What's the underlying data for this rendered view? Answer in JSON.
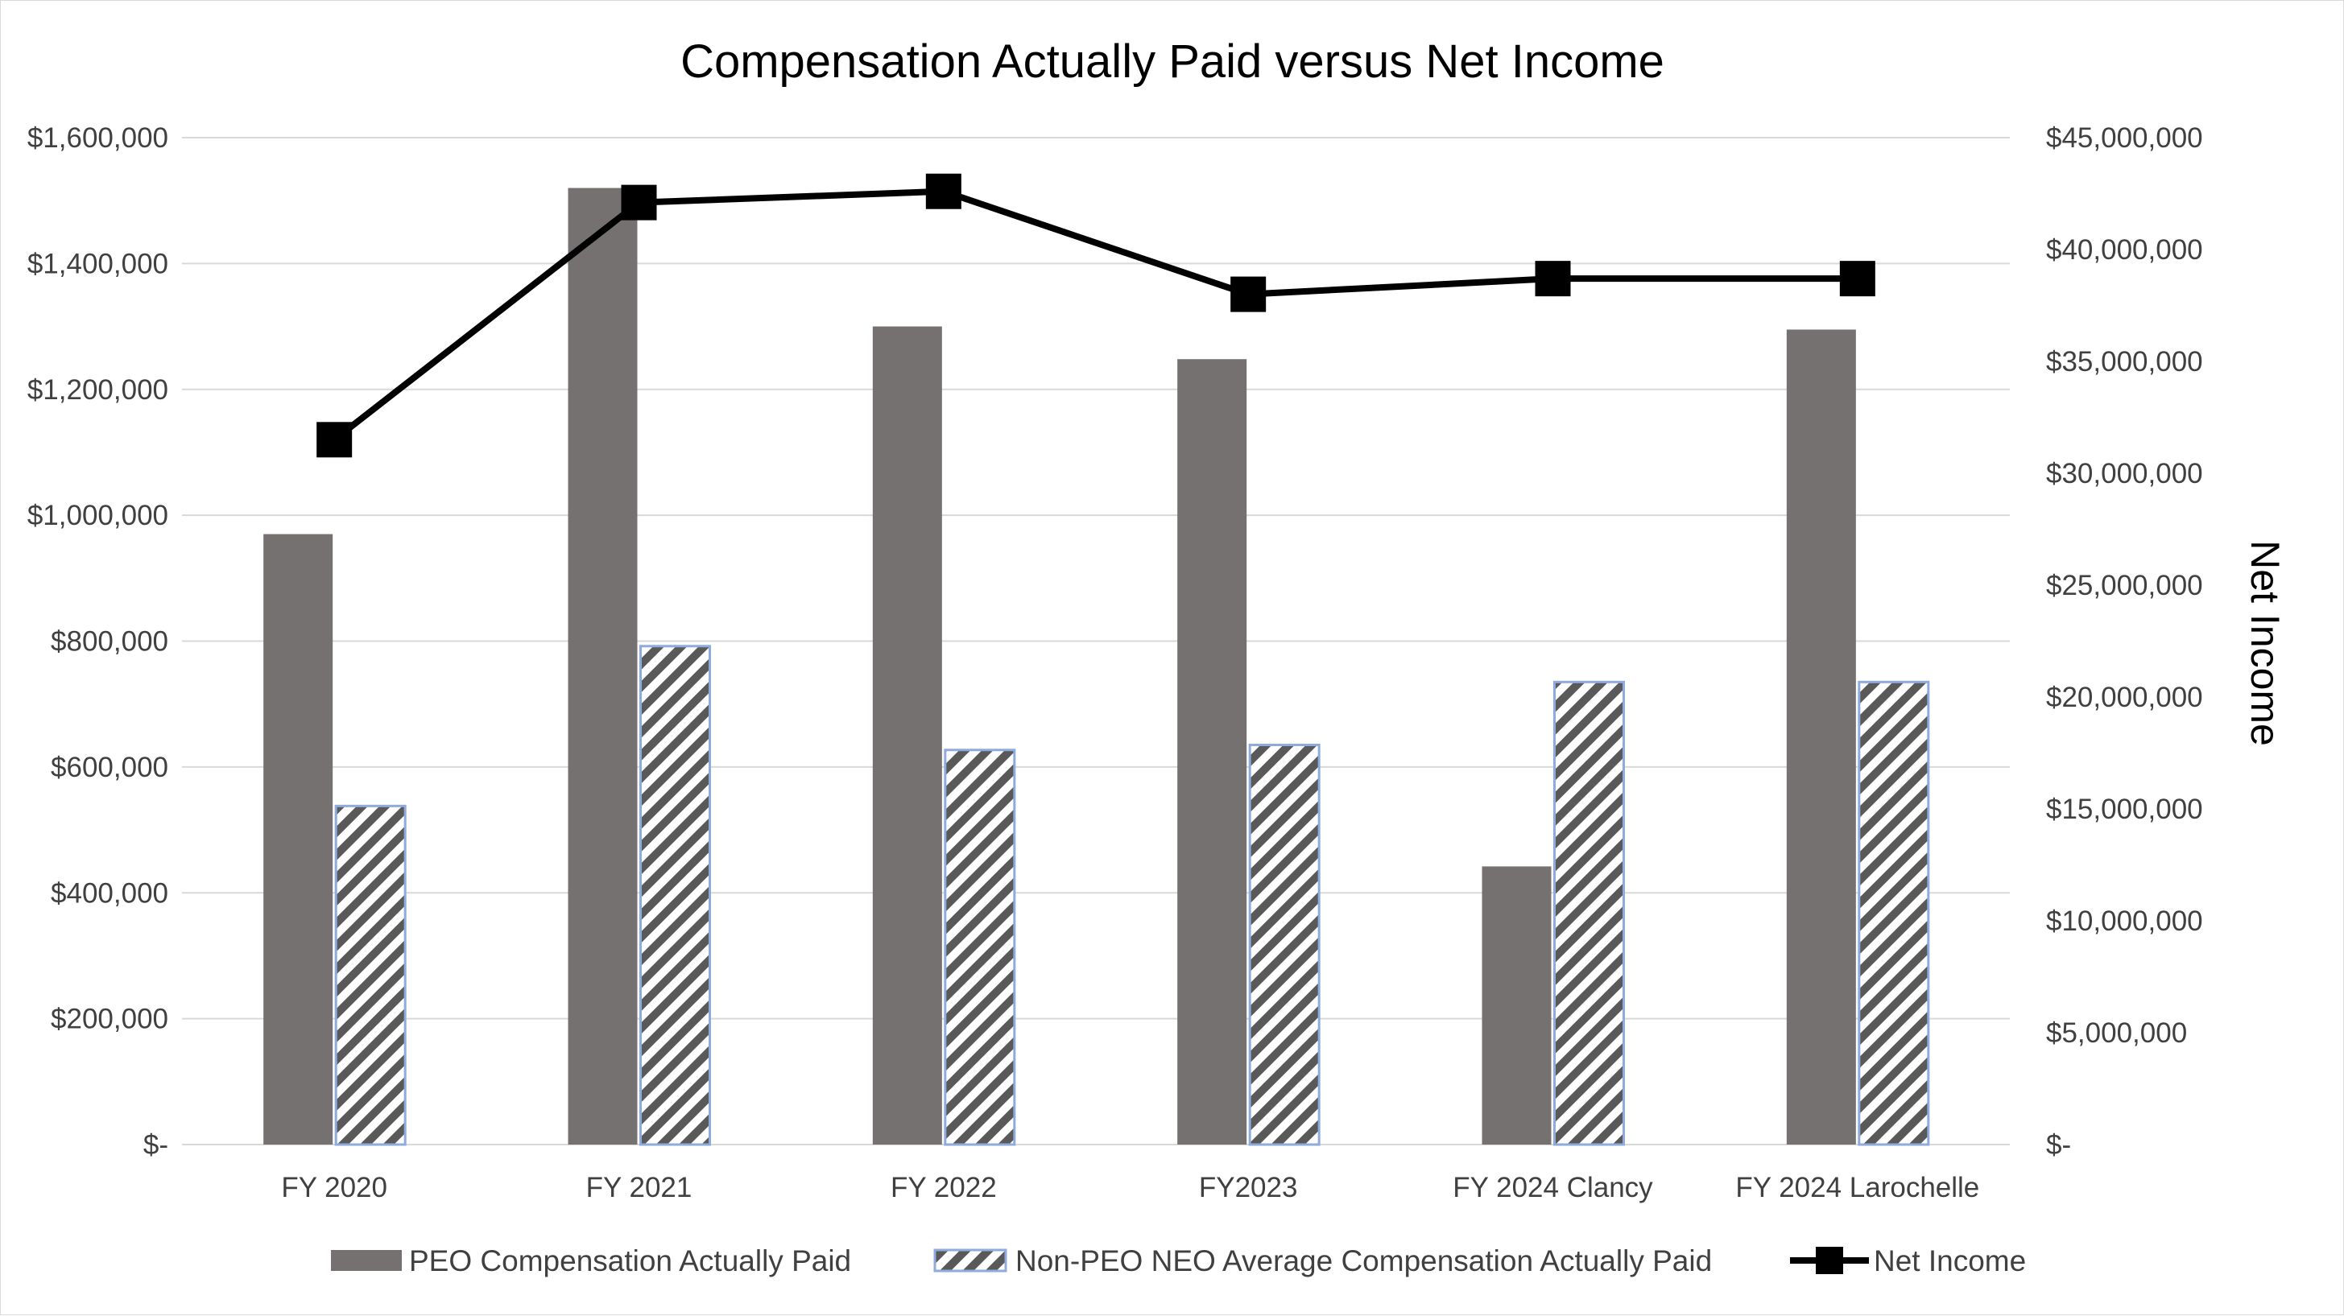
{
  "chart_data": {
    "type": "bar",
    "title": "Compensation Actually Paid versus Net Income",
    "categories": [
      "FY 2020",
      "FY 2021",
      "FY 2022",
      "FY2023",
      "FY 2024 Clancy",
      "FY 2024 Larochelle"
    ],
    "series": [
      {
        "name": "PEO Compensation Actually Paid",
        "type": "bar",
        "axis": "left",
        "color": "#767171",
        "values": [
          970000,
          1520000,
          1300000,
          1248000,
          442000,
          1295000
        ]
      },
      {
        "name": "Non-PEO NEO Average Compensation Actually Paid",
        "type": "bar",
        "axis": "left",
        "pattern": "diagonal-hatch",
        "color": "#595959",
        "values": [
          538000,
          792000,
          627000,
          635000,
          735000,
          735000
        ]
      },
      {
        "name": "Net Income",
        "type": "line",
        "axis": "right",
        "marker": "square",
        "color": "#000000",
        "values": [
          31500000,
          42100000,
          42600000,
          38000000,
          38700000,
          38700000
        ]
      }
    ],
    "left_axis": {
      "label": "",
      "ylim": [
        0,
        1600000
      ],
      "ticks": [
        0,
        200000,
        400000,
        600000,
        800000,
        1000000,
        1200000,
        1400000,
        1600000
      ],
      "tick_labels": [
        "$-",
        "$200,000",
        "$400,000",
        "$600,000",
        "$800,000",
        "$1,000,000",
        "$1,200,000",
        "$1,400,000",
        "$1,600,000"
      ]
    },
    "right_axis": {
      "label": "Net Income",
      "ylim": [
        0,
        45000000
      ],
      "ticks": [
        0,
        5000000,
        10000000,
        15000000,
        20000000,
        25000000,
        30000000,
        35000000,
        40000000,
        45000000
      ],
      "tick_labels": [
        "$-",
        "$5,000,000",
        "$10,000,000",
        "$15,000,000",
        "$20,000,000",
        "$25,000,000",
        "$30,000,000",
        "$35,000,000",
        "$40,000,000",
        "$45,000,000"
      ]
    },
    "grid": true,
    "legend": "bottom"
  }
}
